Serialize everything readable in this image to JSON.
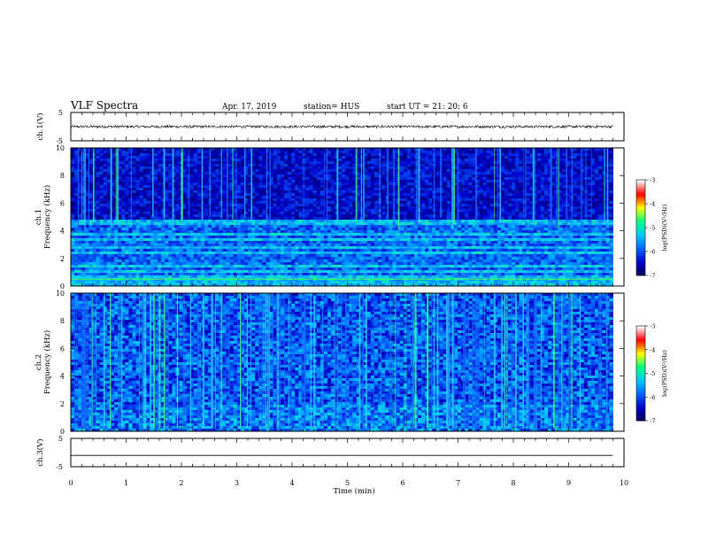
{
  "header": {
    "title": "VLF Spectra",
    "date": "Apr. 17, 2019",
    "station": "station= HUS",
    "start": "start  UT =   21: 20: 6"
  },
  "chart_data": [
    {
      "type": "line",
      "name": "ch1-waveform",
      "ylabel": "ch.1(V)",
      "ylim": [
        -5,
        5
      ],
      "yticks": [
        5,
        -5
      ],
      "x": [
        0,
        1,
        2,
        3,
        4,
        5,
        6,
        7,
        8,
        9,
        9.8
      ],
      "y": [
        0,
        0,
        0,
        0,
        0,
        0,
        0,
        0,
        0,
        0,
        0
      ]
    },
    {
      "type": "heatmap",
      "name": "ch1-spectrogram",
      "ylabel": "ch.1\nFrequency (kHz)",
      "ylim": [
        0,
        10
      ],
      "yticks": [
        "0",
        "2",
        "4",
        "6",
        "8",
        "10"
      ],
      "xlim": [
        0,
        9.8
      ],
      "band_features_khz": {
        "bright_bands": [
          0.2,
          0.6,
          1.0,
          1.4,
          2.4,
          2.8,
          3.4,
          3.7,
          4.6
        ],
        "green_line": 0.5
      },
      "colorbar": {
        "label": "log(PSD)(V²/Hz)",
        "range": [
          -7,
          -3
        ],
        "ticks": [
          "-3",
          "-4",
          "-5",
          "-6",
          "-7"
        ]
      }
    },
    {
      "type": "heatmap",
      "name": "ch2-spectrogram",
      "ylabel": "ch.2\nFrequency (kHz)",
      "ylim": [
        0,
        10
      ],
      "yticks": [
        "0",
        "2",
        "4",
        "6",
        "8",
        "10"
      ],
      "xlim": [
        0,
        9.8
      ],
      "colorbar": {
        "label": "log(PSD)(V²/Hz)",
        "range": [
          -7,
          -3
        ],
        "ticks": [
          "-3",
          "-4",
          "-5",
          "-6",
          "-7"
        ]
      }
    },
    {
      "type": "line",
      "name": "ch3-waveform",
      "ylabel": "ch.3(V)",
      "ylim": [
        -5,
        5
      ],
      "yticks": [
        "5",
        "-5"
      ],
      "x": [
        0,
        9.8
      ],
      "y": [
        -1,
        -1
      ]
    }
  ],
  "xaxis": {
    "label": "Time (min)",
    "range": [
      0,
      10
    ],
    "ticks": [
      "0",
      "1",
      "2",
      "3",
      "4",
      "5",
      "6",
      "7",
      "8",
      "9",
      "10"
    ]
  },
  "colors": {
    "colormap": [
      "#000050",
      "#0000c8",
      "#0064ff",
      "#00c8ff",
      "#00ff80",
      "#ffff00",
      "#ff0000",
      "#ffffff"
    ]
  }
}
